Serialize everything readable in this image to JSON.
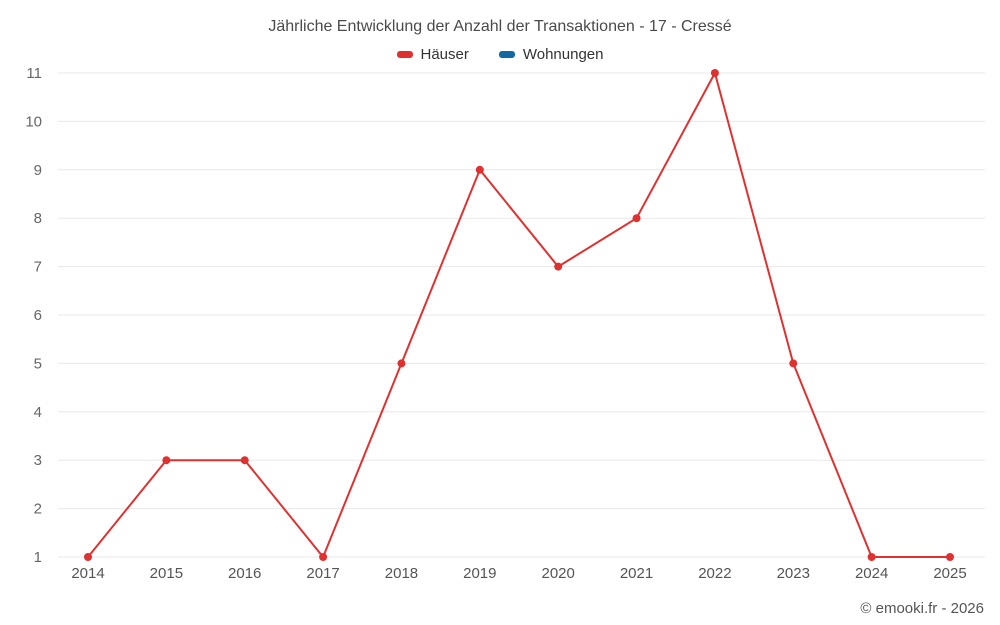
{
  "chart": {
    "footer": "© emooki.fr - 2026"
  },
  "chart_data": {
    "type": "line",
    "title": "Jährliche Entwicklung der Anzahl der Transaktionen - 17 - Cressé",
    "categories": [
      "2014",
      "2015",
      "2016",
      "2017",
      "2018",
      "2019",
      "2020",
      "2021",
      "2022",
      "2023",
      "2024",
      "2025"
    ],
    "series": [
      {
        "name": "Häuser",
        "color": "#e03131",
        "values": [
          1,
          3,
          3,
          1,
          5,
          9,
          7,
          8,
          11,
          5,
          1,
          1
        ]
      },
      {
        "name": "Wohnungen",
        "color": "#1269a2",
        "values": []
      }
    ],
    "xlabel": "",
    "ylabel": "",
    "ylim": [
      1,
      11
    ],
    "yticks": [
      1,
      2,
      3,
      4,
      5,
      6,
      7,
      8,
      9,
      10,
      11
    ],
    "grid": true,
    "legend_position": "top",
    "grid_color": "#e8e8e8"
  }
}
